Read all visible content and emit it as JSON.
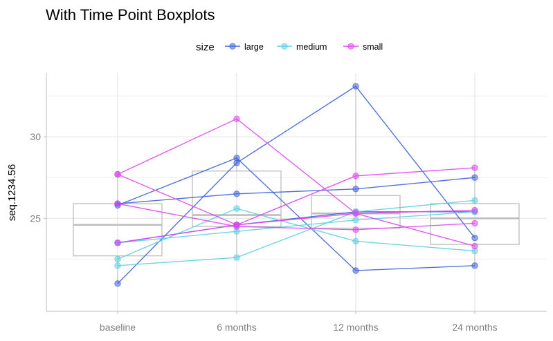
{
  "chart_data": {
    "type": "line",
    "title": "With Time Point Boxplots",
    "ylabel": "seq.1234.56",
    "xlabel": "",
    "categories": [
      "baseline",
      "6 months",
      "12 months",
      "24 months"
    ],
    "ylim": [
      19.3,
      33.9
    ],
    "yticks": [
      25,
      30
    ],
    "grid": true,
    "legend": {
      "title": "size",
      "position": "top",
      "items": [
        {
          "label": "large",
          "color": "#3f63d8"
        },
        {
          "label": "medium",
          "color": "#5fcfe0"
        },
        {
          "label": "small",
          "color": "#e047f0"
        }
      ]
    },
    "boxplots": [
      {
        "category": "baseline",
        "q1": 22.7,
        "median": 24.6,
        "q3": 25.9,
        "whisker_low": 21.0,
        "whisker_high": 27.7
      },
      {
        "category": "6 months",
        "q1": 24.5,
        "median": 25.2,
        "q3": 27.9,
        "whisker_low": 22.6,
        "whisker_high": 31.1
      },
      {
        "category": "12 months",
        "q1": 24.4,
        "median": 25.3,
        "q3": 26.4,
        "whisker_low": 21.8,
        "whisker_high": 33.1
      },
      {
        "category": "24 months",
        "q1": 23.4,
        "median": 25.0,
        "q3": 25.9,
        "whisker_low": 22.1,
        "whisker_high": 28.1
      }
    ],
    "series": [
      {
        "group": "large",
        "values": [
          21.0,
          28.4,
          33.1,
          23.8
        ]
      },
      {
        "group": "large",
        "values": [
          25.8,
          28.7,
          21.8,
          22.1
        ]
      },
      {
        "group": "large",
        "values": [
          25.9,
          26.5,
          26.8,
          27.5
        ]
      },
      {
        "group": "large",
        "values": [
          23.5,
          24.6,
          25.4,
          25.4
        ]
      },
      {
        "group": "medium",
        "values": [
          22.1,
          22.6,
          25.4,
          26.1
        ]
      },
      {
        "group": "medium",
        "values": [
          22.5,
          25.6,
          23.6,
          23.0
        ]
      },
      {
        "group": "medium",
        "values": [
          23.5,
          24.2,
          24.9,
          25.4
        ]
      },
      {
        "group": "small",
        "values": [
          27.7,
          24.6,
          27.6,
          28.1
        ]
      },
      {
        "group": "small",
        "values": [
          27.7,
          31.1,
          25.3,
          23.3
        ]
      },
      {
        "group": "small",
        "values": [
          25.9,
          24.5,
          24.3,
          24.7
        ]
      },
      {
        "group": "small",
        "values": [
          23.5,
          24.6,
          25.3,
          25.5
        ]
      }
    ]
  }
}
